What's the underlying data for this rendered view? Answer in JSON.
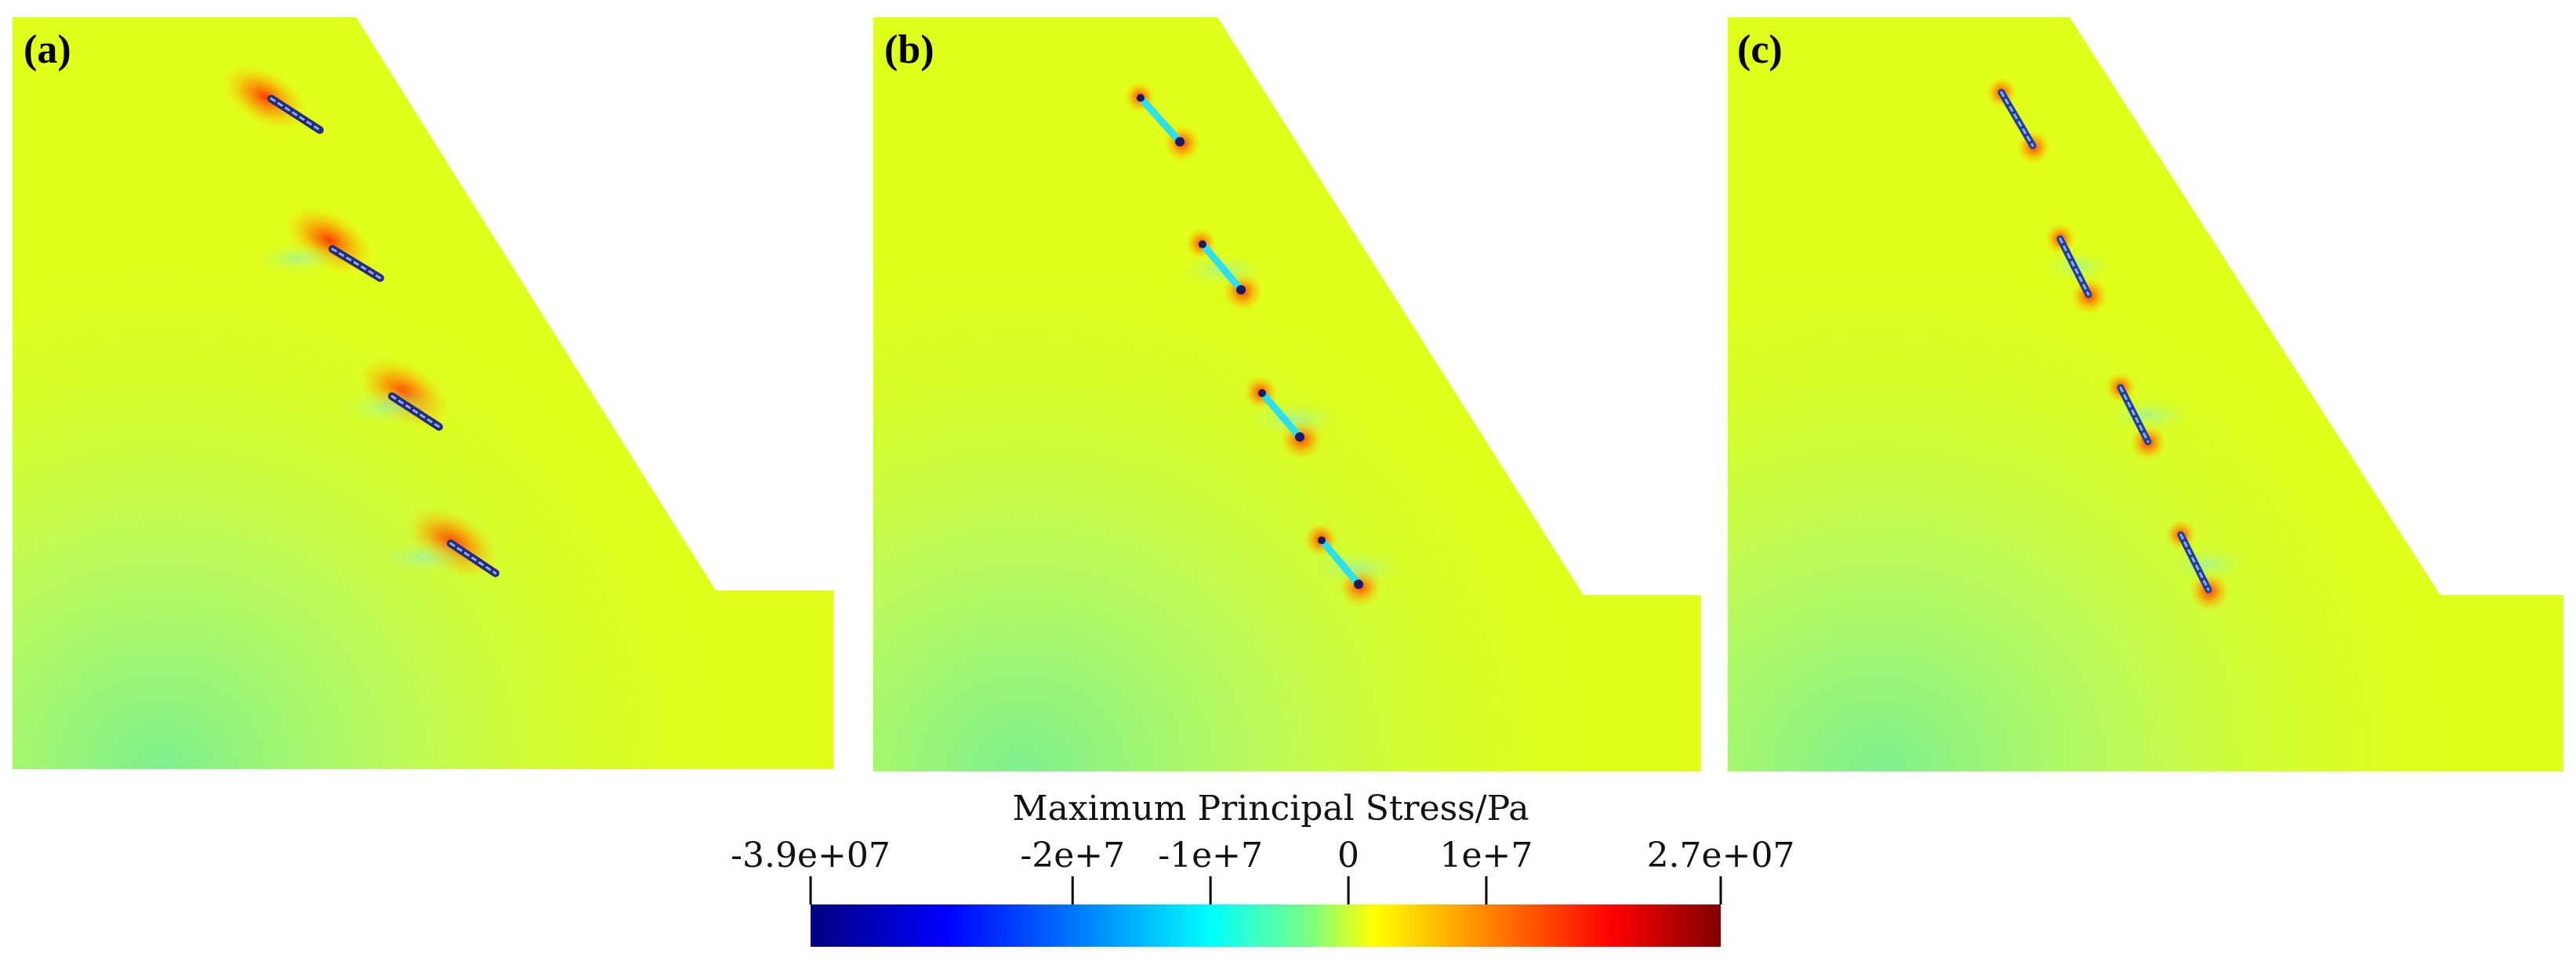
{
  "panels": [
    {
      "label": "(a)"
    },
    {
      "label": "(b)"
    },
    {
      "label": "(c)"
    }
  ],
  "colorbar": {
    "title": "Maximum Principal Stress/Pa",
    "min": -39000000,
    "max": 27000000,
    "ticks": [
      {
        "value": -39000000,
        "label": "-3.9e+07"
      },
      {
        "value": -20000000,
        "label": "-2e+7"
      },
      {
        "value": -10000000,
        "label": "-1e+7"
      },
      {
        "value": 0,
        "label": "0"
      },
      {
        "value": 10000000,
        "label": "1e+7"
      },
      {
        "value": 27000000,
        "label": "2.7e+07"
      }
    ],
    "colors": [
      "#00007f",
      "#0000ff",
      "#007fff",
      "#00ffff",
      "#7fff7f",
      "#ffff00",
      "#ff7f00",
      "#ff0000",
      "#7f0000"
    ]
  },
  "colors": {
    "field": "#e0ff1a",
    "field_low": "#7ef28c",
    "crack_a": "#2a2a7a",
    "crack_b": "#2ee0ef",
    "crack_c": "#2a3a9a",
    "tip": "#c81010"
  }
}
